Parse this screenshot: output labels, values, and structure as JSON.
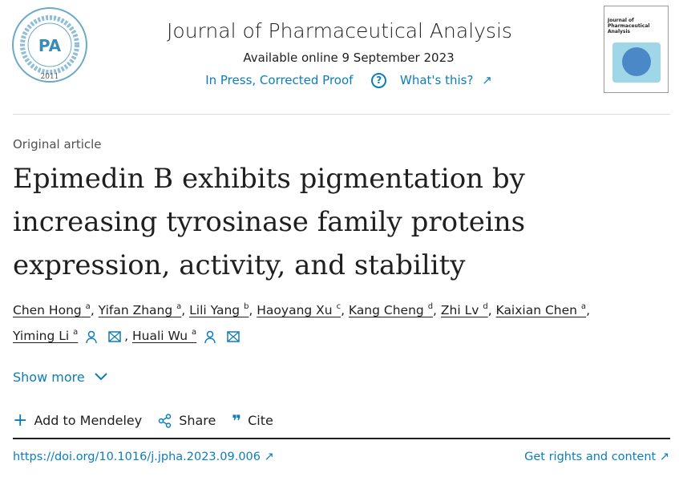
{
  "journal": {
    "title": "Journal of Pharmaceutical Analysis",
    "available": "Available online 9 September 2023",
    "status": "In Press, Corrected Proof",
    "whats_this": "What's this?",
    "logo_text": "Journal of Pharmaceutical Analysis JPA 2011",
    "cover_text": "Journal of Pharmaceutical Analysis"
  },
  "article": {
    "type": "Original article",
    "title": "Epimedin B exhibits pigmentation by increasing tyrosinase family proteins expression, activity, and stability"
  },
  "authors": [
    {
      "name": "Chen Hong",
      "aff": "a"
    },
    {
      "name": "Yifan Zhang",
      "aff": "a"
    },
    {
      "name": "Lili Yang",
      "aff": "b"
    },
    {
      "name": "Haoyang Xu",
      "aff": "c"
    },
    {
      "name": "Kang Cheng",
      "aff": "d"
    },
    {
      "name": "Zhi Lv",
      "aff": "d"
    },
    {
      "name": "Kaixian Chen",
      "aff": "a"
    },
    {
      "name": "Yiming Li",
      "aff": "a"
    },
    {
      "name": "Huali Wu",
      "aff": "a"
    }
  ],
  "show_more": "Show more",
  "actions": {
    "mendeley": "Add to Mendeley",
    "share": "Share",
    "cite": "Cite"
  },
  "doi": "https://doi.org/10.1016/j.jpha.2023.09.006",
  "rights": "Get rights and content",
  "colors": {
    "link": "#0c7dbb",
    "text": "#1f1f1f"
  }
}
